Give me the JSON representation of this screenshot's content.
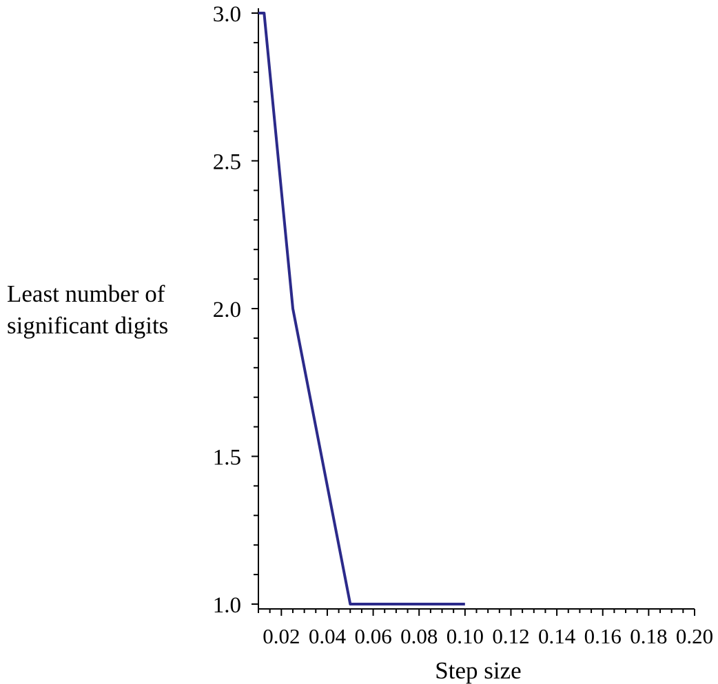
{
  "chart_data": {
    "type": "line",
    "title": "",
    "xlabel": "Step size",
    "ylabel_lines": [
      "Least number of",
      "significant digits"
    ],
    "xlim": [
      0.01,
      0.2
    ],
    "ylim": [
      1.0,
      3.0
    ],
    "x_ticks": [
      0.02,
      0.04,
      0.06,
      0.08,
      0.1,
      0.12,
      0.14,
      0.16,
      0.18,
      0.2
    ],
    "x_tick_labels": [
      "0.02",
      "0.04",
      "0.06",
      "0.08",
      "0.10",
      "0.12",
      "0.14",
      "0.16",
      "0.18",
      "0.20"
    ],
    "y_ticks": [
      1.0,
      1.5,
      2.0,
      2.5,
      3.0
    ],
    "y_tick_labels": [
      "1.0",
      "1.5",
      "2.0",
      "2.5",
      "3.0"
    ],
    "grid": false,
    "legend": "none",
    "series": [
      {
        "color": "#2b2a8a",
        "x": [
          0.01,
          0.0125,
          0.025,
          0.05,
          0.1
        ],
        "y": [
          3,
          3,
          2,
          1,
          1
        ]
      }
    ]
  }
}
